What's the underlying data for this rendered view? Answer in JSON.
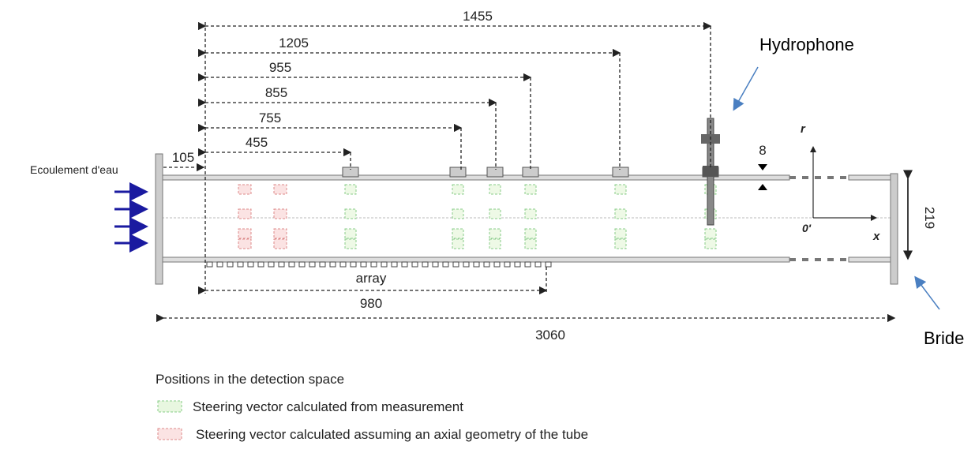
{
  "labels": {
    "flow": "Ecoulement d'eau",
    "hydrophone": "Hydrophone",
    "flange": "Bride",
    "array": "array",
    "r": "r",
    "origin": "0'",
    "x": "x"
  },
  "dimensions": [
    "1455",
    "1205",
    "955",
    "855",
    "755",
    "455",
    "105",
    "980",
    "3060",
    "219",
    "8"
  ],
  "legend": {
    "title": "Positions in the detection space",
    "items": [
      "Steering vector calculated from measurement",
      "Steering vector calculated assuming an axial geometry of the tube"
    ]
  }
}
